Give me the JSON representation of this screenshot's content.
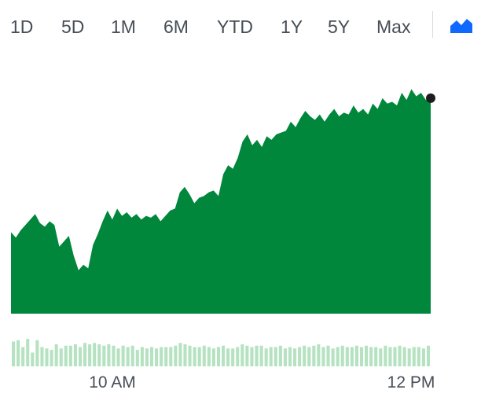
{
  "range_tabs": [
    {
      "label": "1D",
      "active": true
    },
    {
      "label": "5D",
      "active": false
    },
    {
      "label": "1M",
      "active": false
    },
    {
      "label": "6M",
      "active": false
    },
    {
      "label": "YTD",
      "active": false
    },
    {
      "label": "1Y",
      "active": false
    },
    {
      "label": "5Y",
      "active": false
    },
    {
      "label": "Max",
      "active": false
    }
  ],
  "chart_type_icon": "mountain-chart-icon",
  "colors": {
    "active_tab": "#0f69ff",
    "area_fill": "#00873c",
    "volume_bar": "#b5e2c0",
    "last_point": "#1d1d1d"
  },
  "chart_data": {
    "type": "area",
    "title": "",
    "xlabel": "",
    "ylabel": "",
    "x_tick_labels": [
      "10 AM",
      "12 PM"
    ],
    "grid": false,
    "legend": "none",
    "price": [
      45,
      42,
      46,
      49,
      52,
      55,
      50,
      48,
      51,
      49,
      37,
      40,
      43,
      32,
      24,
      27,
      25,
      38,
      44,
      51,
      57,
      52,
      58,
      54,
      56,
      53,
      55,
      52,
      54,
      53,
      55,
      51,
      54,
      57,
      58,
      67,
      70,
      66,
      61,
      64,
      65,
      67,
      68,
      65,
      77,
      82,
      80,
      86,
      95,
      99,
      93,
      96,
      92,
      98,
      96,
      99,
      100,
      101,
      106,
      103,
      108,
      112,
      109,
      107,
      110,
      106,
      110,
      113,
      109,
      111,
      110,
      115,
      111,
      113,
      110,
      116,
      113,
      119,
      116,
      117,
      115,
      122,
      118,
      124,
      120,
      122,
      118,
      119
    ],
    "price_ylim": [
      0,
      135
    ],
    "volume": [
      18,
      19,
      14,
      20,
      10,
      19,
      14,
      13,
      12,
      16,
      13,
      15,
      15,
      16,
      14,
      17,
      16,
      17,
      16,
      15,
      16,
      15,
      13,
      15,
      14,
      15,
      12,
      14,
      13,
      14,
      13,
      14,
      14,
      14,
      15,
      17,
      16,
      15,
      14,
      14,
      15,
      14,
      13,
      14,
      15,
      13,
      13,
      14,
      16,
      15,
      14,
      15,
      15,
      13,
      14,
      14,
      15,
      13,
      14,
      13,
      14,
      15,
      14,
      15,
      16,
      14,
      15,
      13,
      14,
      15,
      14,
      14,
      15,
      14,
      15,
      14,
      14,
      13,
      15,
      14,
      14,
      15,
      14,
      13,
      14,
      14,
      13,
      15
    ],
    "volume_ylim": [
      0,
      40
    ]
  }
}
